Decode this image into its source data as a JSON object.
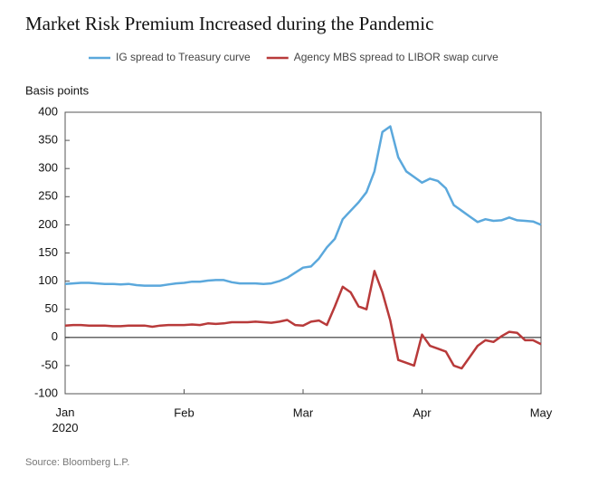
{
  "chart_data": {
    "type": "line",
    "title": "Market Risk Premium Increased during the Pandemic",
    "y_label": "Basis points",
    "source": "Source: Bloomberg L.P.",
    "categories": [
      "Jan 2020",
      null,
      null,
      null,
      null,
      null,
      null,
      null,
      null,
      null,
      null,
      null,
      null,
      null,
      null,
      "Feb",
      null,
      null,
      null,
      null,
      null,
      null,
      null,
      null,
      null,
      null,
      null,
      null,
      null,
      null,
      "Mar",
      null,
      null,
      null,
      null,
      null,
      null,
      null,
      null,
      null,
      null,
      null,
      null,
      null,
      null,
      "Apr",
      null,
      null,
      null,
      null,
      null,
      null,
      null,
      null,
      null,
      null,
      null,
      null,
      null,
      null,
      "May"
    ],
    "series": [
      {
        "name": "IG spread to Treasury curve",
        "color": "#5ba8dc",
        "values": [
          95,
          96,
          97,
          97,
          96,
          95,
          95,
          94,
          95,
          93,
          92,
          92,
          92,
          94,
          96,
          97,
          99,
          99,
          101,
          102,
          102,
          98,
          96,
          96,
          96,
          95,
          96,
          100,
          106,
          115,
          124,
          126,
          140,
          160,
          175,
          210,
          225,
          240,
          258,
          295,
          365,
          375,
          320,
          295,
          285,
          275,
          282,
          278,
          265,
          235,
          225,
          215,
          205,
          210,
          207,
          208,
          213,
          208,
          207,
          206,
          200
        ]
      },
      {
        "name": "Agency MBS spread to LIBOR swap curve",
        "color": "#b83a3a",
        "values": [
          21,
          22,
          22,
          21,
          21,
          21,
          20,
          20,
          21,
          21,
          21,
          19,
          21,
          22,
          22,
          22,
          23,
          22,
          25,
          24,
          25,
          27,
          27,
          27,
          28,
          27,
          26,
          28,
          31,
          22,
          21,
          28,
          30,
          22,
          55,
          90,
          80,
          55,
          50,
          118,
          80,
          30,
          -40,
          -45,
          -50,
          5,
          -15,
          -20,
          -25,
          -50,
          -55,
          -35,
          -15,
          -5,
          -8,
          2,
          10,
          8,
          -5,
          -5,
          -12
        ]
      }
    ],
    "ylim": [
      -100,
      400
    ],
    "yticks": [
      -100,
      -50,
      0,
      50,
      100,
      150,
      200,
      250,
      300,
      350,
      400
    ],
    "legend": "top"
  }
}
